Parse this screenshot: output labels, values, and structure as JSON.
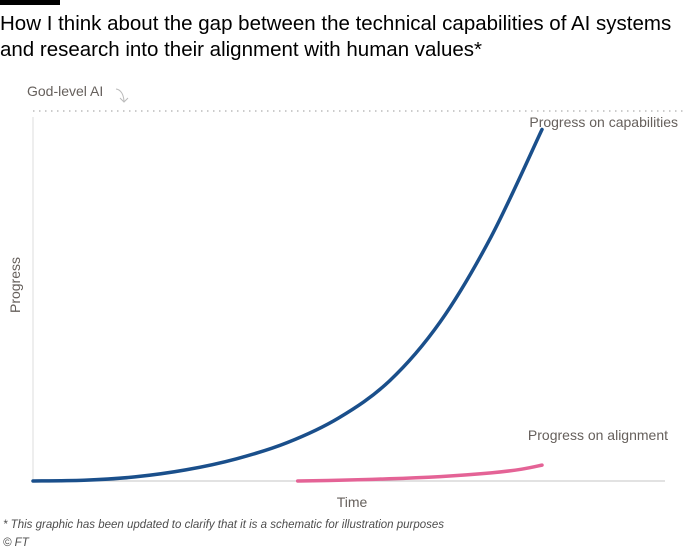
{
  "header": {
    "title_line1": "How I think about the gap between the technical capabilities of AI systems",
    "title_line2": "and research into their alignment with human values*"
  },
  "chart_data": {
    "type": "line",
    "xlabel": "Time",
    "ylabel": "Progress",
    "grid": false,
    "reference_line": {
      "label": "God-level AI",
      "style": "dotted",
      "color": "#cccccc"
    },
    "series": [
      {
        "name": "Progress on capabilities",
        "color": "#1a4f8b",
        "x": [
          0.0,
          0.1,
          0.2,
          0.3,
          0.4,
          0.5,
          0.6,
          0.7,
          0.8,
          0.9,
          1.0
        ],
        "y": [
          0.0,
          0.002,
          0.011,
          0.03,
          0.06,
          0.104,
          0.17,
          0.27,
          0.43,
          0.66,
          0.95
        ]
      },
      {
        "name": "Progress on alignment",
        "color": "#e46396",
        "x": [
          0.52,
          0.6,
          0.7,
          0.8,
          0.9,
          0.96,
          1.0
        ],
        "y": [
          0.0,
          0.002,
          0.006,
          0.012,
          0.022,
          0.032,
          0.043
        ]
      }
    ]
  },
  "footer": {
    "note": "* This graphic has been updated to clarify that it is a schematic for illustration purposes",
    "source": "© FT"
  }
}
